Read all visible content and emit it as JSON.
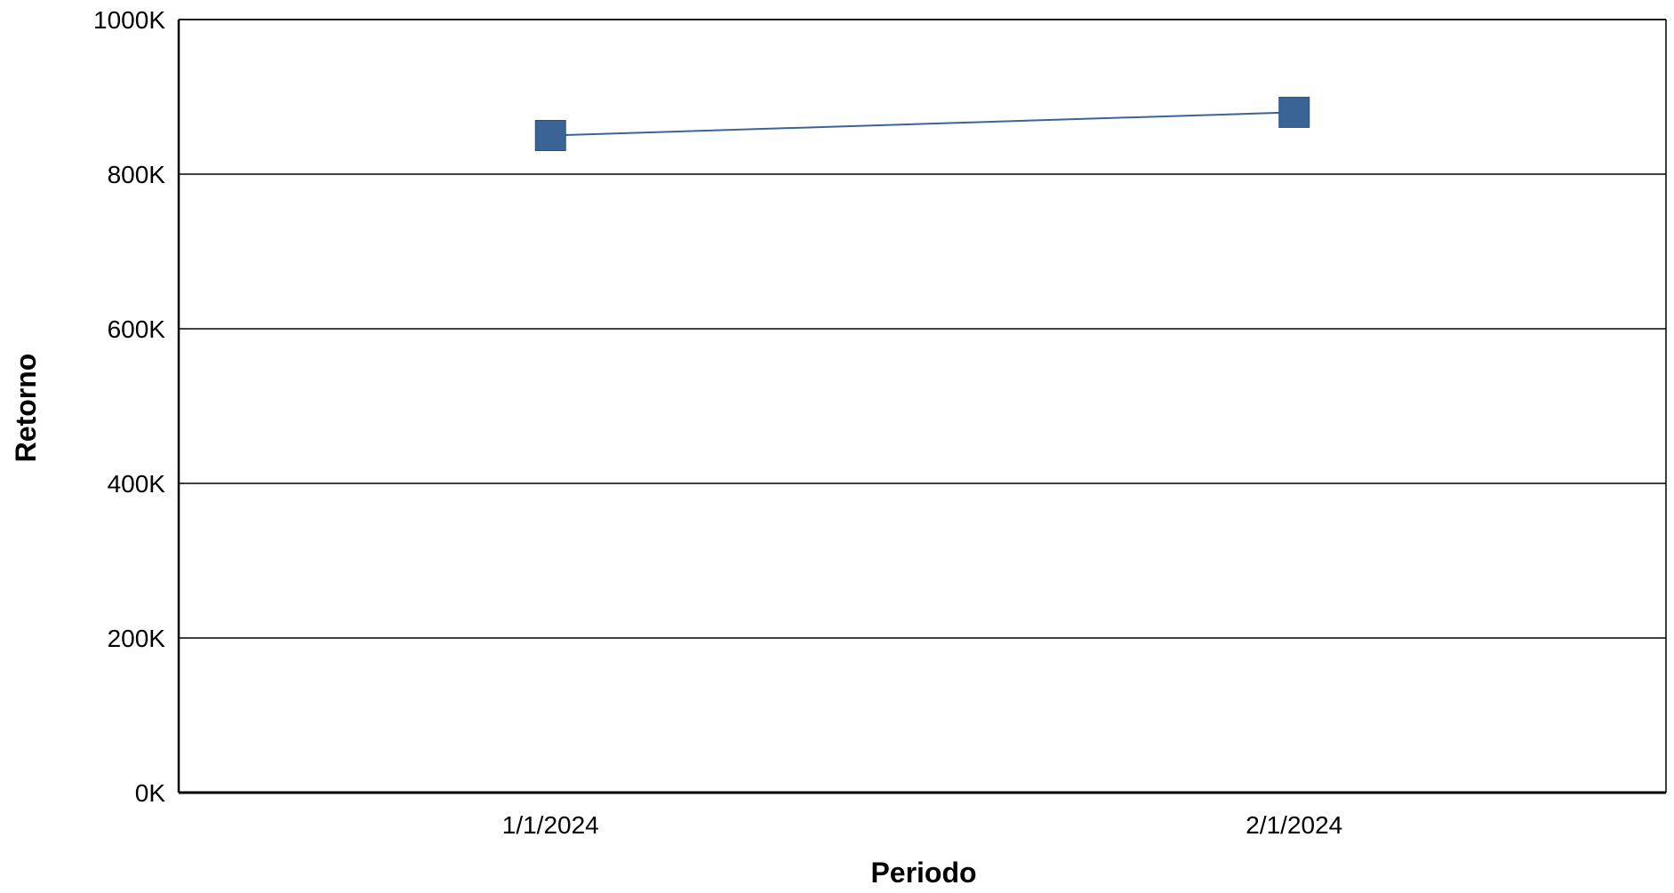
{
  "chart_data": {
    "type": "line",
    "title": "",
    "xlabel": "Periodo",
    "ylabel": "Retorno",
    "x": [
      "1/1/2024",
      "2/1/2024"
    ],
    "series": [
      {
        "values": [
          850000,
          880000
        ],
        "color": "#3a6496"
      }
    ],
    "ylim": [
      0,
      1000000
    ],
    "y_ticks": [
      0,
      200000,
      400000,
      600000,
      800000,
      1000000
    ],
    "y_tick_labels": [
      "0K",
      "200K",
      "400K",
      "600K",
      "800K",
      "1000K"
    ],
    "grid": "horizontal",
    "marker": "square",
    "legend": "none"
  }
}
